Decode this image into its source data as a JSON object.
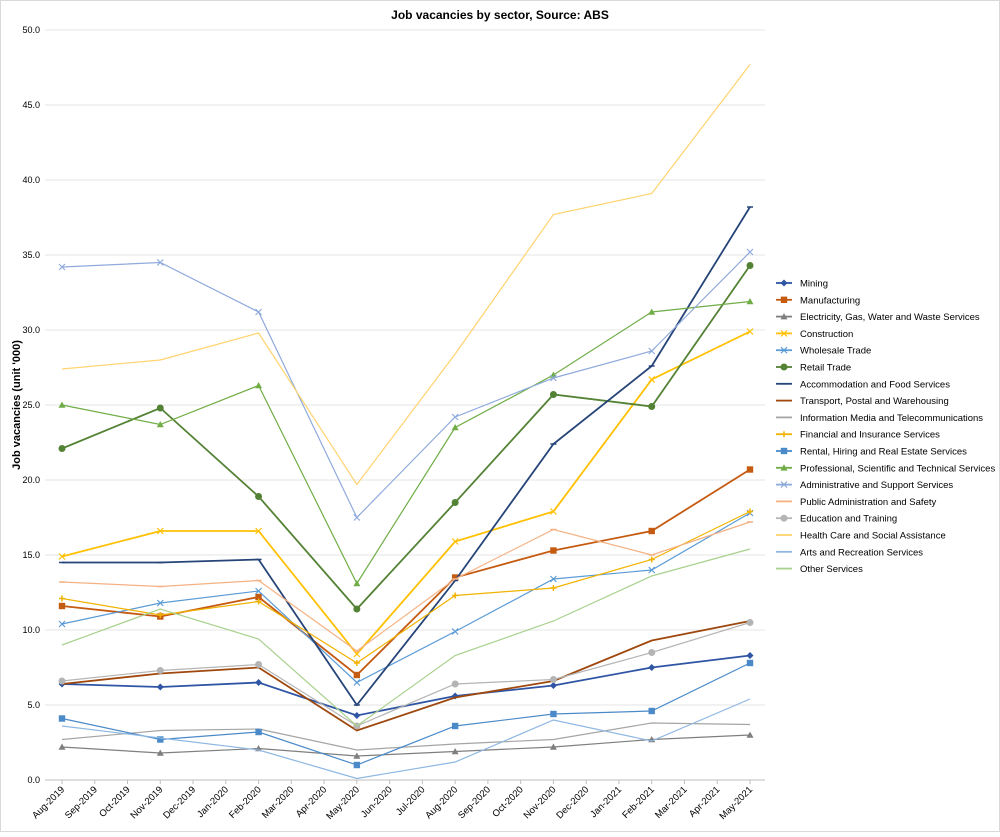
{
  "chart_data": {
    "type": "line",
    "title": "Job vacancies by sector, Source: ABS",
    "xlabel": "",
    "ylabel": "Job vacancies (unit '000)",
    "ylim": [
      0,
      50
    ],
    "yticks": [
      "0.0",
      "5.0",
      "10.0",
      "15.0",
      "20.0",
      "25.0",
      "30.0",
      "35.0",
      "40.0",
      "45.0",
      "50.0"
    ],
    "grid": true,
    "legend_position": "right",
    "x_tick_labels": [
      "Aug-2019",
      "Sep-2019",
      "Oct-2019",
      "Nov-2019",
      "Dec-2019",
      "Jan-2020",
      "Feb-2020",
      "Mar-2020",
      "Apr-2020",
      "May-2020",
      "Jun-2020",
      "Jul-2020",
      "Aug-2020",
      "Sep-2020",
      "Oct-2020",
      "Nov-2020",
      "Dec-2020",
      "Jan-2021",
      "Feb-2021",
      "Mar-2021",
      "Apr-2021",
      "May-2021"
    ],
    "x": [
      "Aug-2019",
      "Nov-2019",
      "Feb-2020",
      "May-2020",
      "Aug-2020",
      "Nov-2020",
      "Feb-2021",
      "May-2021"
    ],
    "series": [
      {
        "name": "Mining",
        "color": "#2F55A4",
        "marker": "diamond",
        "values": [
          6.4,
          6.2,
          6.5,
          4.3,
          5.6,
          6.3,
          7.5,
          8.3
        ]
      },
      {
        "name": "Manufacturing",
        "color": "#C55A11",
        "marker": "square",
        "values": [
          11.6,
          10.9,
          12.2,
          7.0,
          13.5,
          15.3,
          16.6,
          20.7
        ]
      },
      {
        "name": "Electricity, Gas, Water and Waste Services",
        "color": "#7F7F7F",
        "marker": "triangle",
        "values": [
          2.2,
          1.8,
          2.1,
          1.6,
          1.9,
          2.2,
          2.7,
          3.0
        ]
      },
      {
        "name": "Construction",
        "color": "#FFC000",
        "marker": "x",
        "values": [
          14.9,
          16.6,
          16.6,
          8.4,
          15.9,
          17.9,
          26.7,
          29.9
        ]
      },
      {
        "name": "Wholesale Trade",
        "color": "#5B9BD5",
        "marker": "x",
        "values": [
          10.4,
          11.8,
          12.6,
          6.5,
          9.9,
          13.4,
          14.0,
          17.8
        ]
      },
      {
        "name": "Retail Trade",
        "color": "#548235",
        "marker": "circle",
        "values": [
          22.1,
          24.8,
          18.9,
          11.4,
          18.5,
          25.7,
          24.9,
          34.3
        ]
      },
      {
        "name": "Accommodation and Food Services",
        "color": "#264478",
        "marker": "dash",
        "values": [
          14.5,
          14.5,
          14.7,
          5.0,
          13.3,
          22.4,
          27.6,
          38.2
        ]
      },
      {
        "name": "Transport, Postal and Warehousing",
        "color": "#9E480E",
        "marker": "none",
        "values": [
          6.4,
          7.1,
          7.5,
          3.3,
          5.5,
          6.6,
          9.3,
          10.6
        ]
      },
      {
        "name": "Information Media and Telecommunications",
        "color": "#A5A5A5",
        "marker": "none",
        "values": [
          2.7,
          3.3,
          3.4,
          2.0,
          2.4,
          2.7,
          3.8,
          3.7
        ]
      },
      {
        "name": "Financial and Insurance Services",
        "color": "#F2B200",
        "marker": "plus",
        "values": [
          12.1,
          11.0,
          11.9,
          7.8,
          12.3,
          12.8,
          14.7,
          17.9
        ]
      },
      {
        "name": "Rental, Hiring and Real Estate Services",
        "color": "#4A8AC8",
        "marker": "square",
        "values": [
          4.1,
          2.7,
          3.2,
          1.0,
          3.6,
          4.4,
          4.6,
          7.8
        ]
      },
      {
        "name": "Professional, Scientific and Technical Services",
        "color": "#70AD47",
        "marker": "triangle",
        "values": [
          25.0,
          23.7,
          26.3,
          13.1,
          23.5,
          27.0,
          31.2,
          31.9
        ]
      },
      {
        "name": "Administrative and Support Services",
        "color": "#8FAADC",
        "marker": "x",
        "values": [
          34.2,
          34.5,
          31.2,
          17.5,
          24.2,
          26.8,
          28.6,
          35.2
        ]
      },
      {
        "name": "Public Administration and Safety",
        "color": "#F4B183",
        "marker": "dash",
        "values": [
          13.2,
          12.9,
          13.3,
          8.6,
          13.4,
          16.7,
          15.0,
          17.2
        ]
      },
      {
        "name": "Education and Training",
        "color": "#B4B4B4",
        "marker": "circle",
        "values": [
          6.6,
          7.3,
          7.7,
          3.6,
          6.4,
          6.7,
          8.5,
          10.5
        ]
      },
      {
        "name": "Health Care and Social Assistance",
        "color": "#FFD36E",
        "marker": "none",
        "values": [
          27.4,
          28.0,
          29.8,
          19.7,
          28.4,
          37.7,
          39.1,
          47.7
        ]
      },
      {
        "name": "Arts and Recreation Services",
        "color": "#8DB7E2",
        "marker": "none",
        "values": [
          3.6,
          2.8,
          2.0,
          0.1,
          1.2,
          4.0,
          2.6,
          5.4
        ]
      },
      {
        "name": "Other Services",
        "color": "#A9D18E",
        "marker": "none",
        "values": [
          9.0,
          11.4,
          9.4,
          3.6,
          8.3,
          10.6,
          13.6,
          15.4
        ]
      }
    ]
  }
}
